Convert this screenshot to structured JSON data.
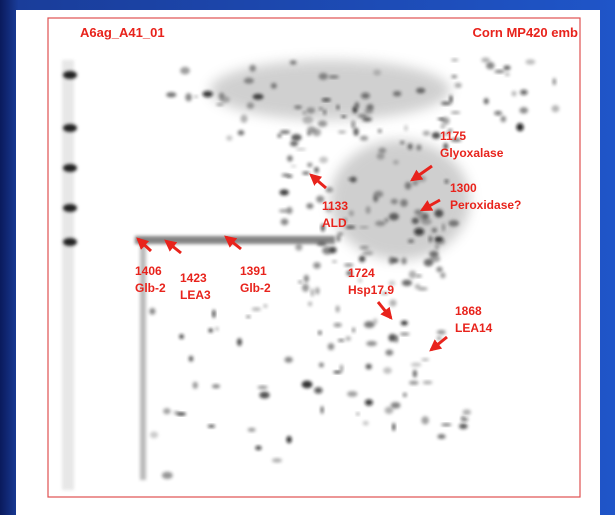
{
  "header": {
    "left": "A6ag_A41_01",
    "right": "Corn MP420 emb"
  },
  "labels": [
    {
      "id": "1175",
      "name": "Glyoxalase"
    },
    {
      "id": "1300",
      "name": "Peroxidase?"
    },
    {
      "id": "1133",
      "name": "ALD"
    },
    {
      "id": "1406",
      "name": "Glb-2"
    },
    {
      "id": "1423",
      "name": "LEA3"
    },
    {
      "id": "1391",
      "name": "Glb-2"
    },
    {
      "id": "1724",
      "name": "Hsp17.9"
    },
    {
      "id": "1868",
      "name": "LEA14"
    }
  ]
}
